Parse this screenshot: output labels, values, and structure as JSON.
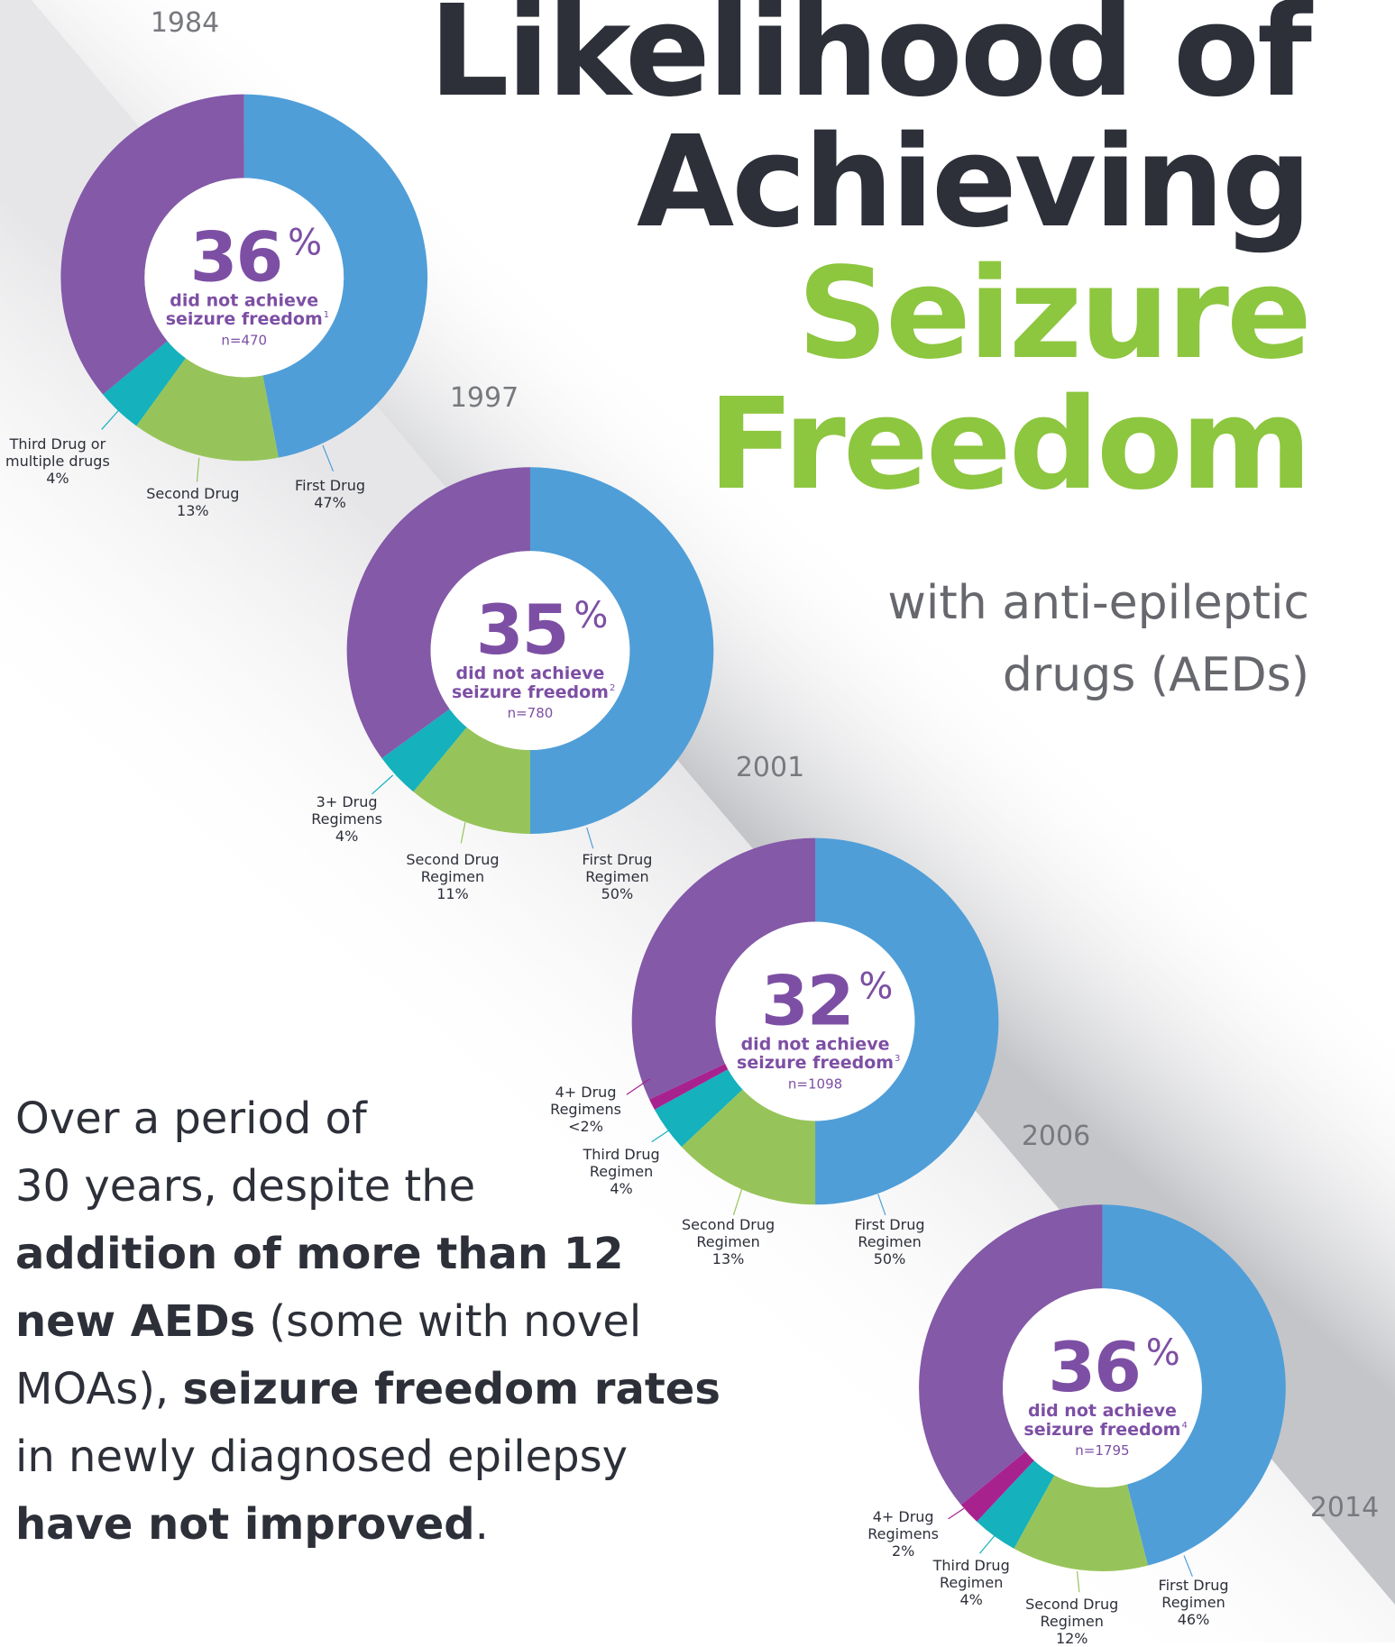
{
  "title_lines": [
    "Likelihood of",
    "Achieving",
    "Seizure",
    "Freedom"
  ],
  "subtitle_lines": [
    "with anti-epileptic",
    "drugs (AEDs)"
  ],
  "timeline": [
    "1984",
    "1997",
    "2001",
    "2006",
    "2014"
  ],
  "body": [
    [
      {
        "text": "Over a period of",
        "bold": false
      }
    ],
    [
      {
        "text": "30 years, despite the",
        "bold": false
      }
    ],
    [
      {
        "text": "addition of more than 12",
        "bold": true
      }
    ],
    [
      {
        "text": "new AEDs",
        "bold": true
      },
      {
        "text": " (some with novel",
        "bold": false
      }
    ],
    [
      {
        "text": "MOAs), ",
        "bold": false
      },
      {
        "text": "seizure freedom rates",
        "bold": true
      }
    ],
    [
      {
        "text": "in newly diagnosed epilepsy",
        "bold": false
      }
    ],
    [
      {
        "text": "have not improved",
        "bold": true
      },
      {
        "text": ".",
        "bold": false
      }
    ]
  ],
  "chart_data": [
    {
      "type": "pie",
      "categories": [
        "First Drug",
        "Second Drug",
        "Third Drug or multiple drugs",
        null
      ],
      "values": [
        47,
        13,
        4,
        36
      ],
      "value_labels": [
        "47%",
        "13%",
        "4%",
        null
      ],
      "colors": [
        "#4f9ed8",
        "#97c45a",
        "#15b1bd",
        "#8459a8"
      ],
      "center_unit": "%",
      "center_lines": [
        "did not achieve",
        "seizure freedom"
      ],
      "footnote": "1",
      "n_label": "n=470"
    },
    {
      "type": "pie",
      "categories": [
        "First Drug Regimen",
        "Second Drug Regimen",
        "3+ Drug Regimens",
        null
      ],
      "values": [
        50,
        11,
        4,
        35
      ],
      "value_labels": [
        "50%",
        "11%",
        "4%",
        null
      ],
      "colors": [
        "#4f9ed8",
        "#97c45a",
        "#15b1bd",
        "#8459a8"
      ],
      "center_unit": "%",
      "center_lines": [
        "did not achieve",
        "seizure freedom"
      ],
      "footnote": "2",
      "n_label": "n=780"
    },
    {
      "type": "pie",
      "categories": [
        "First Drug Regimen",
        "Second Drug Regimen",
        "Third Drug Regimen",
        "4+ Drug Regimens",
        null
      ],
      "values": [
        50,
        13,
        4,
        1,
        32
      ],
      "value_labels": [
        "50%",
        "13%",
        "4%",
        "<2%",
        null
      ],
      "colors": [
        "#4f9ed8",
        "#97c45a",
        "#15b1bd",
        "#a8228e",
        "#8459a8"
      ],
      "center_unit": "%",
      "center_lines": [
        "did not achieve",
        "seizure freedom"
      ],
      "footnote": "3",
      "n_label": "n=1098"
    },
    {
      "type": "pie",
      "categories": [
        "First Drug Regimen",
        "Second Drug Regimen",
        "Third Drug Regimen",
        "4+ Drug Regimens",
        null
      ],
      "values": [
        46,
        12,
        4,
        2,
        36
      ],
      "value_labels": [
        "46%",
        "12%",
        "4%",
        "2%",
        null
      ],
      "colors": [
        "#4f9ed8",
        "#97c45a",
        "#15b1bd",
        "#a8228e",
        "#8459a8"
      ],
      "center_unit": "%",
      "center_lines": [
        "did not achieve",
        "seizure freedom"
      ],
      "footnote": "4",
      "n_label": "n=1795"
    }
  ]
}
